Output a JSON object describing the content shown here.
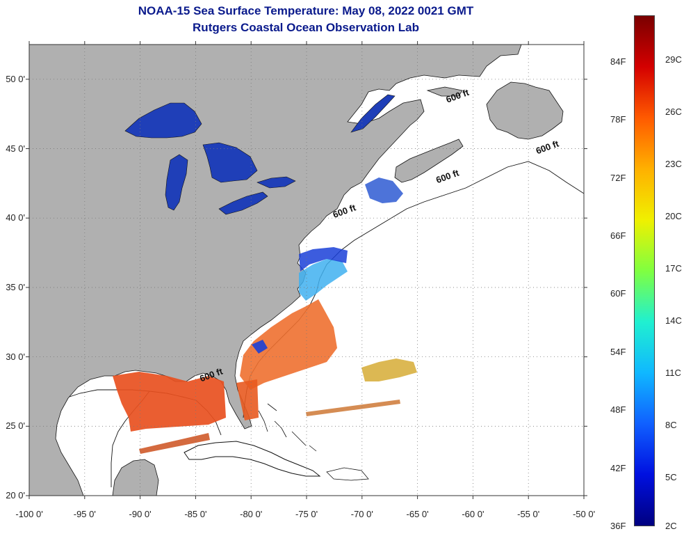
{
  "title": {
    "line1": "NOAA-15 Sea Surface Temperature:  May 08, 2022 0021 GMT",
    "line2": "Rutgers Coastal Ocean Observation Lab"
  },
  "map": {
    "lon_range": [
      -100,
      -50
    ],
    "lat_range": [
      20,
      52.5
    ],
    "lat_ticks": [
      {
        "value": 50,
        "label": "50 0'"
      },
      {
        "value": 45,
        "label": "45 0'"
      },
      {
        "value": 40,
        "label": "40 0'"
      },
      {
        "value": 35,
        "label": "35 0'"
      },
      {
        "value": 30,
        "label": "30 0'"
      },
      {
        "value": 25,
        "label": "25 0'"
      },
      {
        "value": 20,
        "label": "20 0'"
      }
    ],
    "lon_ticks": [
      {
        "value": -100,
        "label": "-100 0'"
      },
      {
        "value": -95,
        "label": "-95 0'"
      },
      {
        "value": -90,
        "label": "-90 0'"
      },
      {
        "value": -85,
        "label": "-85 0'"
      },
      {
        "value": -80,
        "label": "-80 0'"
      },
      {
        "value": -75,
        "label": "-75 0'"
      },
      {
        "value": -70,
        "label": "-70 0'"
      },
      {
        "value": -65,
        "label": "-65 0'"
      },
      {
        "value": -60,
        "label": "-60 0'"
      },
      {
        "value": -55,
        "label": "-55 0'"
      },
      {
        "value": -50,
        "label": "-50 0'"
      }
    ],
    "isobath_labels": [
      {
        "text": "600 ft",
        "lon": -62.3,
        "lat": 48.3
      },
      {
        "text": "600 ft",
        "lon": -54.2,
        "lat": 44.6
      },
      {
        "text": "600 ft",
        "lon": -63.2,
        "lat": 42.5
      },
      {
        "text": "600 ft",
        "lon": -72.5,
        "lat": 40.0
      },
      {
        "text": "600 ft",
        "lon": -84.5,
        "lat": 28.2
      }
    ],
    "colors": {
      "land": "#b0b0b0",
      "ocean": "#ffffff",
      "coast": "#111111",
      "grid": "#777777",
      "lake": "#1f3fb8"
    }
  },
  "colorbar": {
    "fahrenheit_labels": [
      {
        "label": "84F",
        "value": 84
      },
      {
        "label": "78F",
        "value": 78
      },
      {
        "label": "72F",
        "value": 72
      },
      {
        "label": "66F",
        "value": 66
      },
      {
        "label": "60F",
        "value": 60
      },
      {
        "label": "54F",
        "value": 54
      },
      {
        "label": "48F",
        "value": 48
      },
      {
        "label": "42F",
        "value": 42
      },
      {
        "label": "36F",
        "value": 36
      }
    ],
    "celsius_labels": [
      {
        "label": "29C",
        "value": 29
      },
      {
        "label": "26C",
        "value": 26
      },
      {
        "label": "23C",
        "value": 23
      },
      {
        "label": "20C",
        "value": 20
      },
      {
        "label": "17C",
        "value": 17
      },
      {
        "label": "14C",
        "value": 14
      },
      {
        "label": "11C",
        "value": 11
      },
      {
        "label": "8C",
        "value": 8
      },
      {
        "label": "5C",
        "value": 5
      },
      {
        "label": "2C",
        "value": 2
      }
    ],
    "gradient_colors": [
      "#7a0000",
      "#d40000",
      "#ff5a00",
      "#ffb000",
      "#f0f000",
      "#80ff40",
      "#20f0d0",
      "#10b8ff",
      "#1060ff",
      "#0010e0",
      "#000080"
    ]
  }
}
